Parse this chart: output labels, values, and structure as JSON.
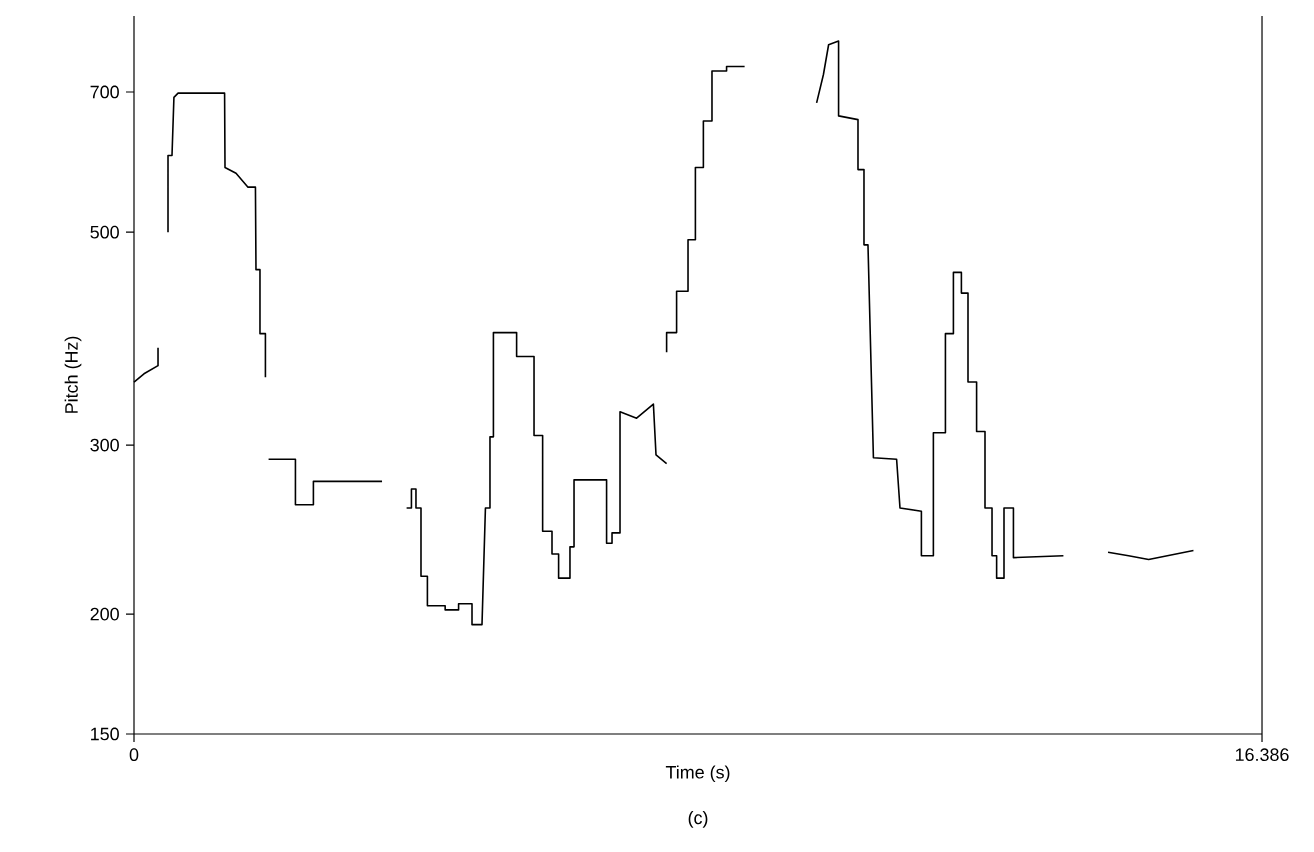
{
  "chart_data": {
    "type": "line",
    "xlabel": "Time (s)",
    "ylabel": "Pitch (Hz)",
    "annotations": [
      "(c)"
    ],
    "log": "y",
    "xlim": [
      0,
      16.386
    ],
    "ylim": [
      150,
      840
    ],
    "xticks": [
      0,
      16.386
    ],
    "yticks": [
      150,
      200,
      300,
      500,
      700
    ],
    "series": [
      {
        "color": "#000000",
        "x": [
          0,
          0.145,
          0.349,
          0.349
        ],
        "values": [
          349,
          356,
          363,
          379
        ]
      },
      {
        "color": "#000000",
        "x": [
          0.494,
          0.494,
          0.552,
          0.58,
          0.64,
          1.316,
          1.322,
          1.482,
          1.656,
          1.764,
          1.772,
          1.83,
          1.83,
          1.909,
          1.909
        ],
        "values": [
          500,
          601,
          601,
          691,
          698,
          698,
          584,
          576,
          557,
          557,
          457,
          457,
          392,
          392,
          353
        ]
      },
      {
        "color": "#000000",
        "x": [
          1.955,
          2.345,
          2.345,
          2.606,
          2.606,
          3.603
        ],
        "values": [
          290,
          290,
          260,
          260,
          275,
          275
        ]
      },
      {
        "color": "#000000",
        "x": [
          3.96,
          4.03,
          4.03,
          4.096,
          4.096,
          4.169,
          4.169,
          4.262,
          4.262,
          4.52,
          4.52,
          4.715,
          4.715,
          4.91,
          4.91,
          5.055,
          5.105,
          5.171,
          5.171,
          5.221,
          5.221,
          5.558,
          5.558,
          5.811,
          5.811,
          5.936,
          5.936,
          6.072,
          6.072,
          6.168,
          6.168,
          6.333,
          6.333,
          6.392,
          6.392,
          6.865,
          6.865,
          6.944,
          6.944,
          7.06,
          7.06,
          7.301,
          7.545,
          7.583,
          7.737
        ],
        "values": [
          258,
          258,
          270,
          270,
          258,
          258,
          219,
          219,
          204,
          204,
          202,
          202,
          205,
          205,
          195,
          195,
          258,
          258,
          306,
          306,
          393,
          393,
          371,
          371,
          307,
          307,
          244,
          244,
          231,
          231,
          218,
          218,
          235,
          235,
          276,
          276,
          237,
          237,
          243,
          243,
          325,
          320,
          331,
          293,
          287
        ]
      },
      {
        "color": "#000000",
        "x": [
          7.737,
          7.737,
          7.882,
          7.882,
          8.048,
          8.048,
          8.155,
          8.155,
          8.271,
          8.271,
          8.396,
          8.396,
          8.608,
          8.608,
          8.87
        ],
        "values": [
          375,
          393,
          393,
          434,
          434,
          491,
          491,
          584,
          584,
          653,
          653,
          736,
          736,
          744,
          744
        ]
      },
      {
        "color": "#000000",
        "x": [
          9.916,
          10.015,
          10.09,
          10.235,
          10.235,
          10.517,
          10.517,
          10.604,
          10.604,
          10.662,
          10.741,
          11.078,
          11.127,
          11.438,
          11.438,
          11.612,
          11.612,
          11.787,
          11.787,
          11.903,
          11.903,
          12.019,
          12.019,
          12.115,
          12.115,
          12.24,
          12.24,
          12.362,
          12.362,
          12.464,
          12.464,
          12.531,
          12.531,
          12.638,
          12.638,
          12.775,
          12.775,
          13.501
        ],
        "values": [
          682,
          730,
          784,
          791,
          661,
          655,
          581,
          581,
          485,
          485,
          291,
          290,
          258,
          256,
          230,
          230,
          309,
          309,
          392,
          392,
          454,
          454,
          432,
          432,
          349,
          349,
          310,
          310,
          258,
          258,
          230,
          230,
          218,
          218,
          258,
          258,
          229,
          230
        ]
      },
      {
        "color": "#000000",
        "x": [
          14.149,
          14.448,
          14.739,
          15.39
        ],
        "values": [
          232,
          230,
          228,
          233
        ]
      }
    ]
  }
}
